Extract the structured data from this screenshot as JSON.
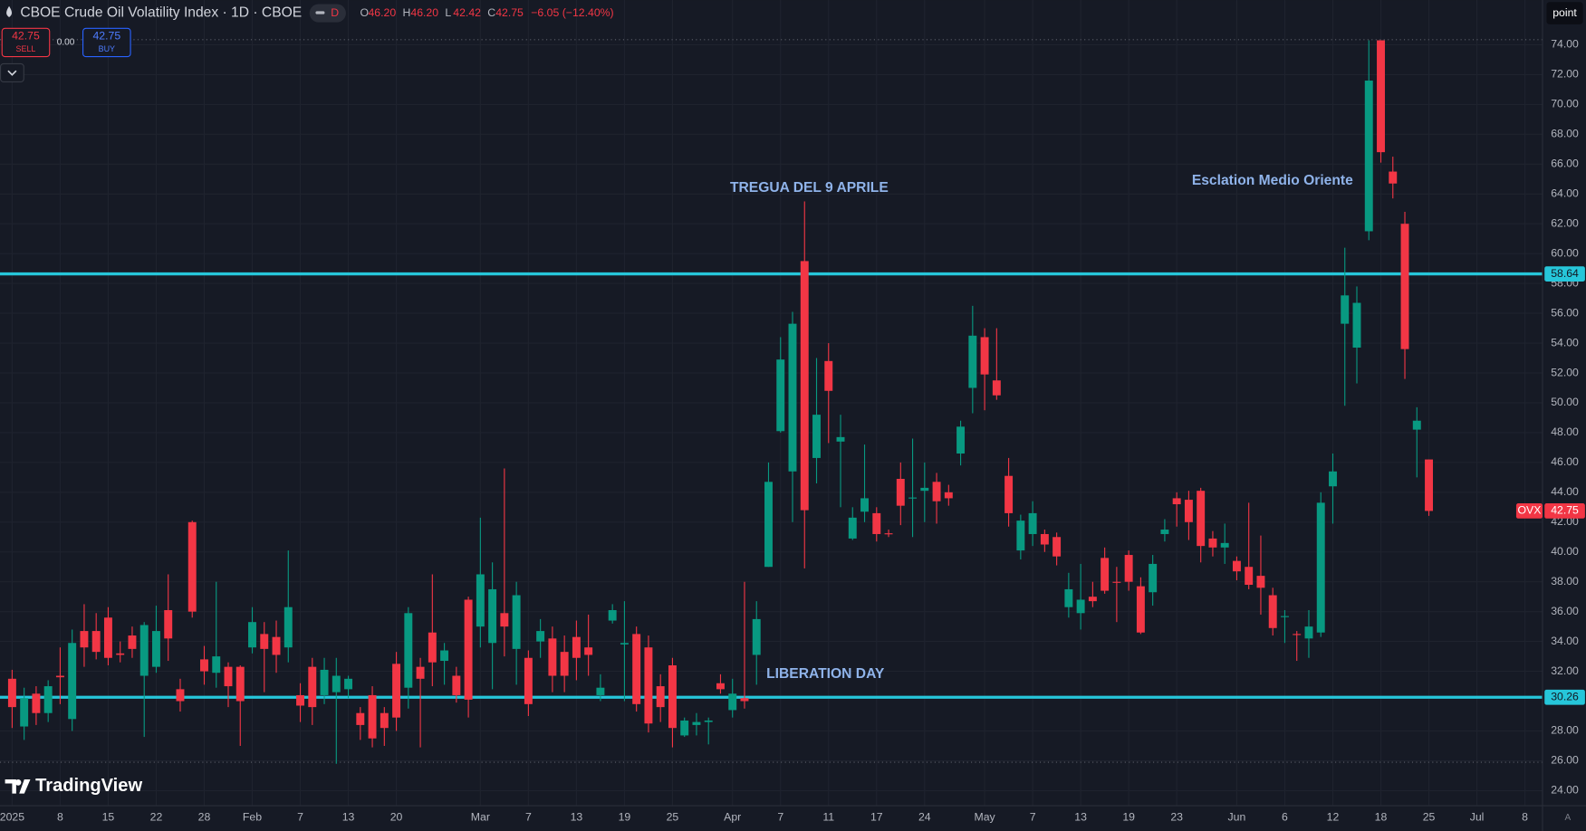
{
  "header": {
    "title": "CBOE Crude Oil Volatility Index · 1D · CBOE",
    "interval_badge": "D",
    "ohlc": [
      {
        "key": "O",
        "value": "46.20"
      },
      {
        "key": "H",
        "value": "46.20"
      },
      {
        "key": "L",
        "value": "42.42"
      },
      {
        "key": "C",
        "value": "42.75"
      }
    ],
    "change": "−6.05 (−12.40%)"
  },
  "trade": {
    "sell_price": "42.75",
    "sell": "SELL",
    "spread": "0.00",
    "buy_price": "42.75",
    "buy": "BUY"
  },
  "toolbar": {
    "point": "point",
    "auto": "A"
  },
  "logo": "TradingView",
  "chart_data": {
    "type": "candlestick",
    "symbol": "OVX",
    "up_color": "#089981",
    "down_color": "#f23645",
    "grid": true,
    "x": [
      "2025-01-02",
      "2025-01-03",
      "2025-01-06",
      "2025-01-07",
      "2025-01-08",
      "2025-01-10",
      "2025-01-13",
      "2025-01-14",
      "2025-01-15",
      "2025-01-16",
      "2025-01-17",
      "2025-01-21",
      "2025-01-22",
      "2025-01-23",
      "2025-01-24",
      "2025-01-27",
      "2025-01-28",
      "2025-01-29",
      "2025-01-30",
      "2025-01-31",
      "2025-02-03",
      "2025-02-04",
      "2025-02-05",
      "2025-02-06",
      "2025-02-07",
      "2025-02-10",
      "2025-02-11",
      "2025-02-12",
      "2025-02-13",
      "2025-02-14",
      "2025-02-18",
      "2025-02-19",
      "2025-02-20",
      "2025-02-21",
      "2025-02-24",
      "2025-02-25",
      "2025-02-26",
      "2025-02-27",
      "2025-02-28",
      "2025-03-03",
      "2025-03-04",
      "2025-03-05",
      "2025-03-06",
      "2025-03-07",
      "2025-03-10",
      "2025-03-11",
      "2025-03-12",
      "2025-03-13",
      "2025-03-14",
      "2025-03-17",
      "2025-03-18",
      "2025-03-19",
      "2025-03-20",
      "2025-03-21",
      "2025-03-24",
      "2025-03-25",
      "2025-03-26",
      "2025-03-27",
      "2025-03-28",
      "2025-03-31",
      "2025-04-01",
      "2025-04-02",
      "2025-04-03",
      "2025-04-04",
      "2025-04-07",
      "2025-04-08",
      "2025-04-09",
      "2025-04-10",
      "2025-04-11",
      "2025-04-14",
      "2025-04-15",
      "2025-04-16",
      "2025-04-17",
      "2025-04-21",
      "2025-04-22",
      "2025-04-23",
      "2025-04-24",
      "2025-04-25",
      "2025-04-28",
      "2025-04-29",
      "2025-04-30",
      "2025-05-01",
      "2025-05-02",
      "2025-05-05",
      "2025-05-06",
      "2025-05-07",
      "2025-05-08",
      "2025-05-09",
      "2025-05-12",
      "2025-05-13",
      "2025-05-14",
      "2025-05-15",
      "2025-05-16",
      "2025-05-19",
      "2025-05-20",
      "2025-05-21",
      "2025-05-22",
      "2025-05-23",
      "2025-05-27",
      "2025-05-28",
      "2025-05-29",
      "2025-05-30",
      "2025-06-02",
      "2025-06-03",
      "2025-06-04",
      "2025-06-05",
      "2025-06-06",
      "2025-06-09",
      "2025-06-10",
      "2025-06-11",
      "2025-06-12",
      "2025-06-13",
      "2025-06-16",
      "2025-06-17",
      "2025-06-18",
      "2025-06-20",
      "2025-06-23",
      "2025-06-24",
      "2025-06-25",
      "2025-06-26",
      "2025-06-27",
      "2025-06-30",
      "2025-07-01",
      "2025-07-02",
      "2025-07-03",
      "2025-07-07",
      "2025-07-08",
      "2025-07-09"
    ],
    "open": [
      31.5,
      28.3,
      30.5,
      29.2,
      31.7,
      28.8,
      34.7,
      34.7,
      35.6,
      33.2,
      34.4,
      31.7,
      32.3,
      36.1,
      30.8,
      42.0,
      32.8,
      31.9,
      32.3,
      32.3,
      33.6,
      34.5,
      34.3,
      33.6,
      30.4,
      32.3,
      30.4,
      30.6,
      30.8,
      29.2,
      30.4,
      29.2,
      32.5,
      30.9,
      32.3,
      34.6,
      32.7,
      31.7,
      36.8,
      35.0,
      33.9,
      35.9,
      33.5,
      32.9,
      34.0,
      34.2,
      33.3,
      34.3,
      33.6,
      30.4,
      35.4,
      33.8,
      34.5,
      33.6,
      31.0,
      32.4,
      27.7,
      28.4,
      28.6,
      31.2,
      29.4,
      30.2,
      33.1,
      39.0,
      48.1,
      45.4,
      59.5,
      46.3,
      52.8,
      47.4,
      40.9,
      42.7,
      42.6,
      41.25,
      44.9,
      43.6,
      44.1,
      44.7,
      44.0,
      46.6,
      51.0,
      54.4,
      51.5,
      45.1,
      40.1,
      41.2,
      41.2,
      41.0,
      36.3,
      35.9,
      37.0,
      39.6,
      38.0,
      39.8,
      37.7,
      37.3,
      41.2,
      43.6,
      43.5,
      44.1,
      40.9,
      40.3,
      39.4,
      39.0,
      38.4,
      37.1,
      35.65,
      34.5,
      34.2,
      34.6,
      44.4,
      55.3,
      53.7,
      61.5,
      74.3,
      65.5,
      62.0,
      48.2,
      46.2,
      null,
      null,
      null,
      null,
      null,
      null,
      null,
      null,
      null
    ],
    "high": [
      32.1,
      30.9,
      31.0,
      31.4,
      33.6,
      34.8,
      36.5,
      35.9,
      36.3,
      34.0,
      35.0,
      35.3,
      36.4,
      38.5,
      31.5,
      42.1,
      33.7,
      38.0,
      32.6,
      32.4,
      36.3,
      35.3,
      35.4,
      40.1,
      31.2,
      32.9,
      32.9,
      32.9,
      31.7,
      29.6,
      31.0,
      29.6,
      33.3,
      36.3,
      32.9,
      38.5,
      33.9,
      32.3,
      37.0,
      42.3,
      39.3,
      45.6,
      38.0,
      33.4,
      35.5,
      35.0,
      34.4,
      35.4,
      35.8,
      31.8,
      36.5,
      36.7,
      35.0,
      34.4,
      31.8,
      32.9,
      28.9,
      29.2,
      28.9,
      31.8,
      31.5,
      38.0,
      36.7,
      46.0,
      54.4,
      56.1,
      63.5,
      53.0,
      54.0,
      49.2,
      43.0,
      47.2,
      43.0,
      41.5,
      46.0,
      47.6,
      46.0,
      45.3,
      44.5,
      48.8,
      56.5,
      55.0,
      55.0,
      46.3,
      42.5,
      43.4,
      41.5,
      41.3,
      38.6,
      39.2,
      38.0,
      40.3,
      39.0,
      40.1,
      38.3,
      39.8,
      42.2,
      44.0,
      44.1,
      44.3,
      41.4,
      41.9,
      39.7,
      43.3,
      41.1,
      37.6,
      36.1,
      34.7,
      36.1,
      44.0,
      46.6,
      60.4,
      57.8,
      74.3,
      74.3,
      66.5,
      62.8,
      49.7,
      46.2,
      null,
      null,
      null,
      null,
      null,
      null,
      null,
      null,
      null
    ],
    "low": [
      28.2,
      27.4,
      28.4,
      28.6,
      29.8,
      28.0,
      32.3,
      32.8,
      32.4,
      32.6,
      32.9,
      27.6,
      31.9,
      32.7,
      29.3,
      35.6,
      31.1,
      30.9,
      29.6,
      27.0,
      33.2,
      30.6,
      31.9,
      32.6,
      28.6,
      28.4,
      29.8,
      25.8,
      30.2,
      27.4,
      26.9,
      27.0,
      28.0,
      29.5,
      26.9,
      31.0,
      31.1,
      29.9,
      28.9,
      33.6,
      30.8,
      33.0,
      31.1,
      29.0,
      32.9,
      30.6,
      30.6,
      31.4,
      31.7,
      30.0,
      35.2,
      30.0,
      29.3,
      27.9,
      28.6,
      26.9,
      27.6,
      27.7,
      27.1,
      30.5,
      28.9,
      29.5,
      31.1,
      39.0,
      48.0,
      42.0,
      38.9,
      44.6,
      47.3,
      43.0,
      40.8,
      42.0,
      40.7,
      41.0,
      41.8,
      41.0,
      42.0,
      41.9,
      43.1,
      45.8,
      49.3,
      49.5,
      50.2,
      41.7,
      39.5,
      40.4,
      40.0,
      39.1,
      35.6,
      34.8,
      36.3,
      37.2,
      35.3,
      37.4,
      34.5,
      36.4,
      40.7,
      41.7,
      40.8,
      39.3,
      39.7,
      39.2,
      38.1,
      37.5,
      35.8,
      34.4,
      33.9,
      32.7,
      32.9,
      34.3,
      41.9,
      49.8,
      51.3,
      60.9,
      66.1,
      63.7,
      51.6,
      45.0,
      42.42,
      null,
      null,
      null,
      null,
      null,
      null,
      null,
      null,
      null
    ],
    "close": [
      29.6,
      30.2,
      29.2,
      31.0,
      31.6,
      33.9,
      33.6,
      33.3,
      32.9,
      33.1,
      33.5,
      35.1,
      34.7,
      34.2,
      30.0,
      36.0,
      32.0,
      33.0,
      31.0,
      30.0,
      35.3,
      33.5,
      33.1,
      36.3,
      29.7,
      29.6,
      32.1,
      31.7,
      31.5,
      28.4,
      27.5,
      28.2,
      28.9,
      35.9,
      31.5,
      32.6,
      33.4,
      30.4,
      30.1,
      38.5,
      37.5,
      35.0,
      37.1,
      29.8,
      34.7,
      31.7,
      31.7,
      32.9,
      33.1,
      30.9,
      36.1,
      33.9,
      29.8,
      28.5,
      29.6,
      28.2,
      28.7,
      28.6,
      28.7,
      30.8,
      30.5,
      30.0,
      35.5,
      44.7,
      52.9,
      55.3,
      42.8,
      49.2,
      50.8,
      47.7,
      42.3,
      43.6,
      41.2,
      41.2,
      43.1,
      43.65,
      44.3,
      43.4,
      43.6,
      48.4,
      54.5,
      51.9,
      50.5,
      42.6,
      42.1,
      42.6,
      40.5,
      39.7,
      37.5,
      36.8,
      36.7,
      37.4,
      37.95,
      38.0,
      34.6,
      39.2,
      41.5,
      43.2,
      42.0,
      40.4,
      40.3,
      40.6,
      38.7,
      37.8,
      37.6,
      34.9,
      35.7,
      34.45,
      35.0,
      43.3,
      45.4,
      57.2,
      56.7,
      71.6,
      66.8,
      64.7,
      53.6,
      48.8,
      42.75,
      null,
      null,
      null,
      null,
      null,
      null,
      null,
      null,
      null
    ],
    "ylim": [
      22.99,
      77.0
    ],
    "yticks": [
      {
        "value": 24,
        "label": "24.00"
      },
      {
        "value": 26,
        "label": "26.00"
      },
      {
        "value": 28,
        "label": "28.00"
      },
      {
        "value": 32,
        "label": "32.00"
      },
      {
        "value": 34,
        "label": "34.00"
      },
      {
        "value": 36,
        "label": "36.00"
      },
      {
        "value": 38,
        "label": "38.00"
      },
      {
        "value": 40,
        "label": "40.00"
      },
      {
        "value": 42,
        "label": "42.00"
      },
      {
        "value": 44,
        "label": "44.00"
      },
      {
        "value": 46,
        "label": "46.00"
      },
      {
        "value": 48,
        "label": "48.00"
      },
      {
        "value": 50,
        "label": "50.00"
      },
      {
        "value": 52,
        "label": "52.00"
      },
      {
        "value": 54,
        "label": "54.00"
      },
      {
        "value": 56,
        "label": "56.00"
      },
      {
        "value": 58,
        "label": "58.00"
      },
      {
        "value": 60,
        "label": "60.00"
      },
      {
        "value": 62,
        "label": "62.00"
      },
      {
        "value": 64,
        "label": "64.00"
      },
      {
        "value": 66,
        "label": "66.00"
      },
      {
        "value": 68,
        "label": "68.00"
      },
      {
        "value": 70,
        "label": "70.00"
      },
      {
        "value": 72,
        "label": "72.00"
      },
      {
        "value": 74,
        "label": "74.00"
      }
    ],
    "xticks": [
      {
        "value": "2025-01-02",
        "label": "2025"
      },
      {
        "value": "2025-01-08",
        "label": "8"
      },
      {
        "value": "2025-01-15",
        "label": "15"
      },
      {
        "value": "2025-01-22",
        "label": "22"
      },
      {
        "value": "2025-01-28",
        "label": "28"
      },
      {
        "value": "2025-02-03",
        "label": "Feb"
      },
      {
        "value": "2025-02-07",
        "label": "7"
      },
      {
        "value": "2025-02-13",
        "label": "13"
      },
      {
        "value": "2025-02-20",
        "label": "20"
      },
      {
        "value": "2025-03-03",
        "label": "Mar"
      },
      {
        "value": "2025-03-07",
        "label": "7"
      },
      {
        "value": "2025-03-13",
        "label": "13"
      },
      {
        "value": "2025-03-19",
        "label": "19"
      },
      {
        "value": "2025-03-25",
        "label": "25"
      },
      {
        "value": "2025-04-01",
        "label": "Apr"
      },
      {
        "value": "2025-04-07",
        "label": "7"
      },
      {
        "value": "2025-04-11",
        "label": "11"
      },
      {
        "value": "2025-04-17",
        "label": "17"
      },
      {
        "value": "2025-04-24",
        "label": "24"
      },
      {
        "value": "2025-05-01",
        "label": "May"
      },
      {
        "value": "2025-05-07",
        "label": "7"
      },
      {
        "value": "2025-05-13",
        "label": "13"
      },
      {
        "value": "2025-05-19",
        "label": "19"
      },
      {
        "value": "2025-05-23",
        "label": "23"
      },
      {
        "value": "2025-06-02",
        "label": "Jun"
      },
      {
        "value": "2025-06-06",
        "label": "6"
      },
      {
        "value": "2025-06-12",
        "label": "12"
      },
      {
        "value": "2025-06-18",
        "label": "18"
      },
      {
        "value": "2025-06-25",
        "label": "25"
      },
      {
        "value": "2025-07-01",
        "label": "Jul"
      },
      {
        "value": "2025-07-08",
        "label": "8"
      }
    ],
    "hlines": [
      {
        "value": 58.64,
        "label": "58.64",
        "color": "#26c6da"
      },
      {
        "value": 30.26,
        "label": "30.26",
        "color": "#26c6da"
      }
    ],
    "range_lines": [
      74.34,
      25.9
    ],
    "last_price": {
      "value": 42.75,
      "label": "42.75"
    },
    "annotations": [
      {
        "text": "TREGUA DEL 9 APRILE"
      },
      {
        "text": "Esclation Medio Oriente"
      },
      {
        "text": "LIBERATION DAY"
      }
    ]
  }
}
